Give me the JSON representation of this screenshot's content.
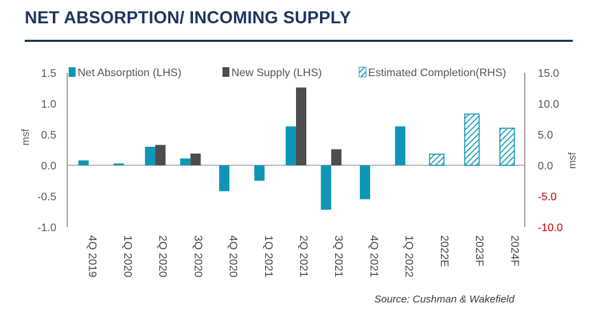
{
  "header": {
    "title": "NET ABSORPTION/ INCOMING SUPPLY"
  },
  "source": "Source: Cushman & Wakefield",
  "colors": {
    "title": "#1b365d",
    "absorption": "#0f96b7",
    "supply": "#4d4d4f",
    "estimated": "#0f96b7",
    "negative_tick": "#c00000",
    "axis": "#a6a6a6"
  },
  "chart_data": {
    "type": "bar",
    "categories": [
      "4Q 2019",
      "1Q 2020",
      "2Q 2020",
      "3Q 2020",
      "4Q 2020",
      "1Q 2021",
      "2Q 2021",
      "3Q 2021",
      "4Q 2021",
      "1Q 2022",
      "2022E",
      "2023F",
      "2024F"
    ],
    "series": [
      {
        "name": "Net Absorption (LHS)",
        "axis": "left",
        "style": "solid",
        "color": "#0f96b7",
        "values": [
          0.08,
          0.03,
          0.3,
          0.11,
          -0.42,
          -0.25,
          0.63,
          -0.72,
          -0.55,
          0.63,
          null,
          null,
          null
        ]
      },
      {
        "name": "New Supply (LHS)",
        "axis": "left",
        "style": "solid",
        "color": "#4d4d4f",
        "values": [
          null,
          null,
          0.33,
          0.19,
          null,
          null,
          1.26,
          0.26,
          null,
          null,
          null,
          null,
          null
        ]
      },
      {
        "name": "Estimated Completion(RHS)",
        "axis": "right",
        "style": "hatched",
        "color": "#0f96b7",
        "values": [
          null,
          null,
          null,
          null,
          null,
          null,
          null,
          null,
          null,
          null,
          1.8,
          8.3,
          6.0
        ]
      }
    ],
    "left_axis": {
      "label": "msf",
      "min": -1.0,
      "max": 1.5,
      "ticks": [
        "1.5",
        "1.0",
        "0.5",
        "0.0",
        "-0.5",
        "-1.0"
      ]
    },
    "right_axis": {
      "label": "msf",
      "min": -10.0,
      "max": 15.0,
      "ticks": [
        "15.0",
        "10.0",
        "5.0",
        "0.0",
        "-5.0",
        "-10.0"
      ]
    },
    "legend": [
      "Net Absorption (LHS)",
      "New Supply (LHS)",
      "Estimated Completion(RHS)"
    ],
    "legend_position": "top"
  }
}
